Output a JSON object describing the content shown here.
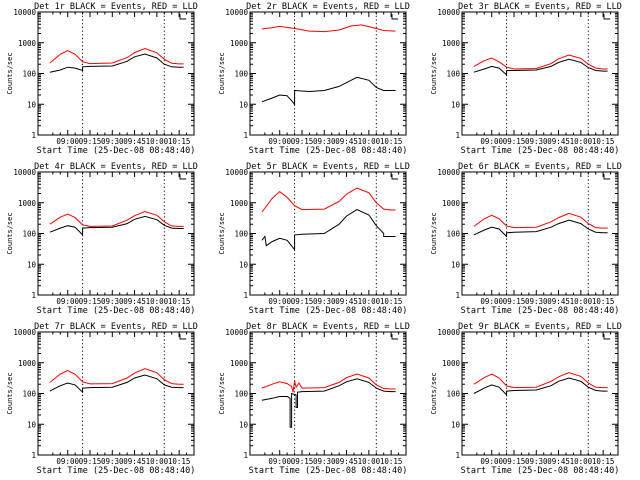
{
  "colors": {
    "events": "#000000",
    "lld": "#ff0000",
    "axis": "#000000",
    "background": "#ffffff"
  },
  "chart_data": [
    {
      "type": "line",
      "title": "Det 1r BLACK = Events, RED = LLD",
      "xlabel": "Start Time (25-Dec-08 08:48:40)",
      "ylabel": "Counts/sec",
      "yscale": "log",
      "ylim": [
        1,
        10000
      ],
      "xticks": [
        "09:00",
        "09:15",
        "09:30",
        "09:45",
        "10:00",
        "10:15"
      ],
      "yticks": [
        "1",
        "10",
        "100",
        "1000",
        "10000"
      ],
      "series": [
        {
          "key": "lld",
          "x": [
            "08:48",
            "08:55",
            "09:00",
            "09:05",
            "09:10",
            "09:15",
            "09:30",
            "09:40",
            "09:45",
            "09:52",
            "10:00",
            "10:05",
            "10:10",
            "10:15",
            "10:18"
          ],
          "y": [
            220,
            420,
            560,
            420,
            240,
            210,
            220,
            330,
            480,
            650,
            470,
            290,
            215,
            205,
            205
          ]
        },
        {
          "key": "events",
          "x": [
            "08:48",
            "08:55",
            "09:00",
            "09:05",
            "09:10",
            "09:10",
            "09:15",
            "09:30",
            "09:40",
            "09:45",
            "09:52",
            "10:00",
            "10:05",
            "10:10",
            "10:15",
            "10:18"
          ],
          "y": [
            110,
            130,
            160,
            150,
            125,
            165,
            170,
            175,
            250,
            350,
            430,
            320,
            200,
            165,
            160,
            160
          ]
        }
      ]
    },
    {
      "type": "line",
      "title": "Det 2r BLACK = Events, RED = LLD",
      "xlabel": "Start Time (25-Dec-08 08:48:40)",
      "ylabel": "Counts/sec",
      "yscale": "log",
      "ylim": [
        1,
        10000
      ],
      "xticks": [
        "09:00",
        "09:15",
        "09:30",
        "09:45",
        "10:00",
        "10:15"
      ],
      "yticks": [
        "1",
        "10",
        "100",
        "1000",
        "10000"
      ],
      "series": [
        {
          "key": "lld",
          "x": [
            "08:48",
            "08:55",
            "09:00",
            "09:10",
            "09:20",
            "09:30",
            "09:40",
            "09:48",
            "09:55",
            "10:05",
            "10:10",
            "10:18"
          ],
          "y": [
            2800,
            3100,
            3400,
            2900,
            2400,
            2300,
            2600,
            3500,
            3800,
            2900,
            2500,
            2400
          ]
        },
        {
          "key": "events",
          "x": [
            "08:48",
            "08:55",
            "09:00",
            "09:05",
            "09:08",
            "09:10",
            "09:10",
            "09:20",
            "09:30",
            "09:40",
            "09:48",
            "09:52",
            "10:00",
            "10:05",
            "10:10",
            "10:18"
          ],
          "y": [
            12,
            16,
            20,
            19,
            13,
            10,
            28,
            26,
            28,
            38,
            60,
            75,
            60,
            35,
            28,
            28
          ]
        }
      ]
    },
    {
      "type": "line",
      "title": "Det 3r BLACK = Events, RED = LLD",
      "xlabel": "Start Time (25-Dec-08 08:48:40)",
      "ylabel": "Counts/sec",
      "yscale": "log",
      "ylim": [
        1,
        10000
      ],
      "xticks": [
        "09:00",
        "09:15",
        "09:30",
        "09:45",
        "10:00",
        "10:15"
      ],
      "yticks": [
        "1",
        "10",
        "100",
        "1000",
        "10000"
      ],
      "series": [
        {
          "key": "lld",
          "x": [
            "08:48",
            "08:55",
            "09:00",
            "09:05",
            "09:10",
            "09:15",
            "09:30",
            "09:40",
            "09:45",
            "09:52",
            "10:00",
            "10:05",
            "10:10",
            "10:15",
            "10:18"
          ],
          "y": [
            170,
            260,
            320,
            240,
            160,
            140,
            145,
            210,
            300,
            400,
            310,
            200,
            150,
            140,
            140
          ]
        },
        {
          "key": "events",
          "x": [
            "08:48",
            "08:55",
            "09:00",
            "09:05",
            "09:10",
            "09:10",
            "09:15",
            "09:30",
            "09:40",
            "09:45",
            "09:52",
            "10:00",
            "10:05",
            "10:10",
            "10:15",
            "10:18"
          ],
          "y": [
            110,
            140,
            170,
            150,
            90,
            125,
            125,
            130,
            170,
            230,
            290,
            230,
            155,
            125,
            120,
            120
          ]
        }
      ]
    },
    {
      "type": "line",
      "title": "Det 4r BLACK = Events, RED = LLD",
      "xlabel": "Start Time (25-Dec-08 08:48:40)",
      "ylabel": "Counts/sec",
      "yscale": "log",
      "ylim": [
        1,
        10000
      ],
      "xticks": [
        "09:00",
        "09:15",
        "09:30",
        "09:45",
        "10:00",
        "10:15"
      ],
      "yticks": [
        "1",
        "10",
        "100",
        "1000",
        "10000"
      ],
      "series": [
        {
          "key": "lld",
          "x": [
            "08:48",
            "08:55",
            "09:00",
            "09:05",
            "09:10",
            "09:15",
            "09:30",
            "09:40",
            "09:45",
            "09:52",
            "10:00",
            "10:05",
            "10:10",
            "10:15",
            "10:18"
          ],
          "y": [
            200,
            340,
            430,
            330,
            190,
            170,
            175,
            270,
            380,
            520,
            390,
            240,
            175,
            170,
            170
          ]
        },
        {
          "key": "events",
          "x": [
            "08:48",
            "08:55",
            "09:00",
            "09:05",
            "09:10",
            "09:10",
            "09:15",
            "09:30",
            "09:40",
            "09:45",
            "09:52",
            "10:00",
            "10:05",
            "10:10",
            "10:15",
            "10:18"
          ],
          "y": [
            110,
            150,
            180,
            160,
            90,
            150,
            155,
            160,
            210,
            290,
            360,
            280,
            185,
            150,
            145,
            145
          ]
        }
      ]
    },
    {
      "type": "line",
      "title": "Det 5r BLACK = Events, RED = LLD",
      "xlabel": "Start Time (25-Dec-08 08:48:40)",
      "ylabel": "Counts/sec",
      "yscale": "log",
      "ylim": [
        1,
        10000
      ],
      "xticks": [
        "09:00",
        "09:15",
        "09:30",
        "09:45",
        "10:00",
        "10:15"
      ],
      "yticks": [
        "1",
        "10",
        "100",
        "1000",
        "10000"
      ],
      "series": [
        {
          "key": "lld",
          "x": [
            "08:48",
            "08:55",
            "09:00",
            "09:05",
            "09:10",
            "09:15",
            "09:30",
            "09:40",
            "09:45",
            "09:52",
            "10:00",
            "10:05",
            "10:10",
            "10:15",
            "10:18"
          ],
          "y": [
            500,
            1400,
            2300,
            1500,
            800,
            600,
            620,
            1100,
            1900,
            3000,
            2100,
            1000,
            620,
            580,
            580
          ]
        },
        {
          "key": "events",
          "x": [
            "08:48",
            "08:50",
            "08:51",
            "08:55",
            "09:00",
            "09:05",
            "09:10",
            "09:10",
            "09:15",
            "09:30",
            "09:40",
            "09:45",
            "09:52",
            "10:00",
            "10:05",
            "10:10",
            "10:10",
            "10:15",
            "10:18"
          ],
          "y": [
            60,
            80,
            40,
            55,
            70,
            60,
            30,
            90,
            95,
            100,
            200,
            370,
            600,
            400,
            180,
            100,
            80,
            80,
            80
          ]
        }
      ]
    },
    {
      "type": "line",
      "title": "Det 6r BLACK = Events, RED = LLD",
      "xlabel": "Start Time (25-Dec-08 08:48:40)",
      "ylabel": "Counts/sec",
      "yscale": "log",
      "ylim": [
        1,
        10000
      ],
      "xticks": [
        "09:00",
        "09:15",
        "09:30",
        "09:45",
        "10:00",
        "10:15"
      ],
      "yticks": [
        "1",
        "10",
        "100",
        "1000",
        "10000"
      ],
      "series": [
        {
          "key": "lld",
          "x": [
            "08:48",
            "08:55",
            "09:00",
            "09:05",
            "09:10",
            "09:15",
            "09:30",
            "09:40",
            "09:45",
            "09:52",
            "10:00",
            "10:05",
            "10:10",
            "10:15",
            "10:18"
          ],
          "y": [
            170,
            300,
            390,
            300,
            175,
            155,
            160,
            240,
            330,
            450,
            340,
            210,
            155,
            150,
            150
          ]
        },
        {
          "key": "events",
          "x": [
            "08:48",
            "08:55",
            "09:00",
            "09:05",
            "09:10",
            "09:10",
            "09:15",
            "09:30",
            "09:40",
            "09:45",
            "09:52",
            "10:00",
            "10:05",
            "10:10",
            "10:15",
            "10:18"
          ],
          "y": [
            90,
            130,
            160,
            140,
            80,
            105,
            110,
            115,
            160,
            210,
            270,
            210,
            140,
            110,
            105,
            105
          ]
        }
      ]
    },
    {
      "type": "line",
      "title": "Det 7r BLACK = Events, RED = LLD",
      "xlabel": "Start Time (25-Dec-08 08:48:40)",
      "ylabel": "Counts/sec",
      "yscale": "log",
      "ylim": [
        1,
        10000
      ],
      "xticks": [
        "09:00",
        "09:15",
        "09:30",
        "09:45",
        "10:00",
        "10:15"
      ],
      "yticks": [
        "1",
        "10",
        "100",
        "1000",
        "10000"
      ],
      "series": [
        {
          "key": "lld",
          "x": [
            "08:48",
            "08:55",
            "09:00",
            "09:05",
            "09:10",
            "09:15",
            "09:30",
            "09:40",
            "09:45",
            "09:52",
            "10:00",
            "10:05",
            "10:10",
            "10:15",
            "10:18"
          ],
          "y": [
            230,
            430,
            560,
            420,
            240,
            205,
            210,
            320,
            460,
            640,
            470,
            280,
            210,
            200,
            200
          ]
        },
        {
          "key": "events",
          "x": [
            "08:48",
            "08:55",
            "09:00",
            "09:05",
            "09:10",
            "09:10",
            "09:15",
            "09:30",
            "09:40",
            "09:45",
            "09:52",
            "10:00",
            "10:05",
            "10:10",
            "10:15",
            "10:18"
          ],
          "y": [
            120,
            180,
            220,
            190,
            110,
            150,
            155,
            160,
            230,
            320,
            400,
            300,
            190,
            160,
            155,
            155
          ]
        }
      ]
    },
    {
      "type": "line",
      "title": "Det 8r BLACK = Events, RED = LLD",
      "xlabel": "Start Time (25-Dec-08 08:48:40)",
      "ylabel": "Counts/sec",
      "yscale": "log",
      "ylim": [
        1,
        10000
      ],
      "xticks": [
        "09:00",
        "09:15",
        "09:30",
        "09:45",
        "10:00",
        "10:15"
      ],
      "yticks": [
        "1",
        "10",
        "100",
        "1000",
        "10000"
      ],
      "series": [
        {
          "key": "lld",
          "x": [
            "08:48",
            "08:55",
            "09:00",
            "09:05",
            "09:08",
            "09:09",
            "09:10",
            "09:11",
            "09:13",
            "09:15",
            "09:30",
            "09:40",
            "09:45",
            "09:52",
            "10:00",
            "10:05",
            "10:10",
            "10:15",
            "10:18"
          ],
          "y": [
            150,
            200,
            240,
            210,
            170,
            110,
            260,
            160,
            220,
            150,
            155,
            230,
            330,
            430,
            320,
            190,
            145,
            140,
            140
          ]
        },
        {
          "key": "events",
          "x": [
            "08:48",
            "08:55",
            "09:00",
            "09:05",
            "09:07",
            "09:07",
            "09:08",
            "09:08",
            "09:11",
            "09:11",
            "09:12",
            "09:12",
            "09:15",
            "09:30",
            "09:40",
            "09:45",
            "09:52",
            "10:00",
            "10:05",
            "10:10",
            "10:15",
            "10:18"
          ],
          "y": [
            60,
            70,
            80,
            80,
            70,
            8,
            8,
            100,
            90,
            35,
            35,
            110,
            115,
            120,
            180,
            240,
            300,
            230,
            150,
            120,
            115,
            115
          ]
        }
      ]
    },
    {
      "type": "line",
      "title": "Det 9r BLACK = Events, RED = LLD",
      "xlabel": "Start Time (25-Dec-08 08:48:40)",
      "ylabel": "Counts/sec",
      "yscale": "log",
      "ylim": [
        1,
        10000
      ],
      "xticks": [
        "09:00",
        "09:15",
        "09:30",
        "09:45",
        "10:00",
        "10:15"
      ],
      "yticks": [
        "1",
        "10",
        "100",
        "1000",
        "10000"
      ],
      "series": [
        {
          "key": "lld",
          "x": [
            "08:48",
            "08:55",
            "09:00",
            "09:05",
            "09:10",
            "09:15",
            "09:30",
            "09:40",
            "09:45",
            "09:52",
            "10:00",
            "10:05",
            "10:10",
            "10:15",
            "10:18"
          ],
          "y": [
            200,
            330,
            430,
            320,
            175,
            155,
            160,
            250,
            350,
            480,
            360,
            220,
            160,
            155,
            155
          ]
        },
        {
          "key": "events",
          "x": [
            "08:48",
            "08:55",
            "09:00",
            "09:05",
            "09:10",
            "09:10",
            "09:15",
            "09:30",
            "09:40",
            "09:45",
            "09:52",
            "10:00",
            "10:05",
            "10:10",
            "10:15",
            "10:18"
          ],
          "y": [
            100,
            150,
            190,
            160,
            90,
            120,
            125,
            130,
            180,
            250,
            320,
            250,
            160,
            125,
            120,
            120
          ]
        }
      ]
    }
  ]
}
